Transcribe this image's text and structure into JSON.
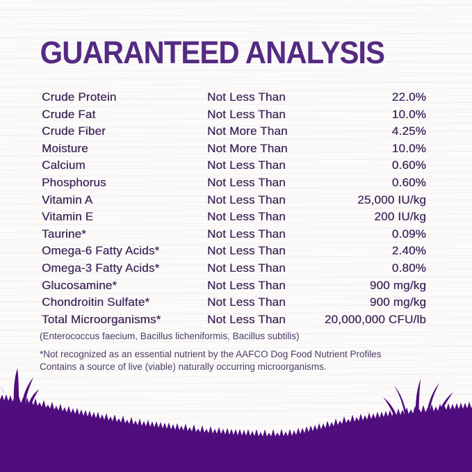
{
  "title": "GUARANTEED ANALYSIS",
  "colors": {
    "title_text": "#542A82",
    "body_text": "#41295A",
    "footnote_text": "#4B3B63",
    "hill": "#4F0D7D"
  },
  "table": {
    "rows": [
      {
        "nutrient": "Crude Protein",
        "condition": "Not Less Than",
        "value": "22.0%"
      },
      {
        "nutrient": "Crude Fat",
        "condition": "Not Less Than",
        "value": "10.0%"
      },
      {
        "nutrient": "Crude Fiber",
        "condition": "Not More Than",
        "value": "4.25%"
      },
      {
        "nutrient": "Moisture",
        "condition": "Not More Than",
        "value": "10.0%"
      },
      {
        "nutrient": "Calcium",
        "condition": "Not Less Than",
        "value": "0.60%"
      },
      {
        "nutrient": "Phosphorus",
        "condition": "Not Less Than",
        "value": "0.60%"
      },
      {
        "nutrient": "Vitamin A",
        "condition": "Not Less Than",
        "value": "25,000 IU/kg"
      },
      {
        "nutrient": "Vitamin E",
        "condition": "Not Less Than",
        "value": "200 IU/kg"
      },
      {
        "nutrient": "Taurine*",
        "condition": "Not Less Than",
        "value": "0.09%"
      },
      {
        "nutrient": "Omega-6 Fatty Acids*",
        "condition": "Not Less Than",
        "value": "2.40%"
      },
      {
        "nutrient": "Omega-3 Fatty Acids*",
        "condition": "Not Less Than",
        "value": "0.80%"
      },
      {
        "nutrient": "Glucosamine*",
        "condition": "Not Less Than",
        "value": "900 mg/kg"
      },
      {
        "nutrient": "Chondroitin Sulfate*",
        "condition": "Not Less Than",
        "value": "900 mg/kg"
      },
      {
        "nutrient": "Total Microorganisms*",
        "condition": "Not Less Than",
        "value": "20,000,000 CFU/lb"
      }
    ]
  },
  "notes": {
    "organisms": "(Enterococcus faecium, Bacillus licheniformis, Bacillus subtilis)",
    "footnote_line1": "*Not recognized as an essential nutrient by the AAFCO Dog Food Nutrient Profiles",
    "footnote_line2": "Contains a source of live (viable) naturally occurring microorganisms."
  }
}
